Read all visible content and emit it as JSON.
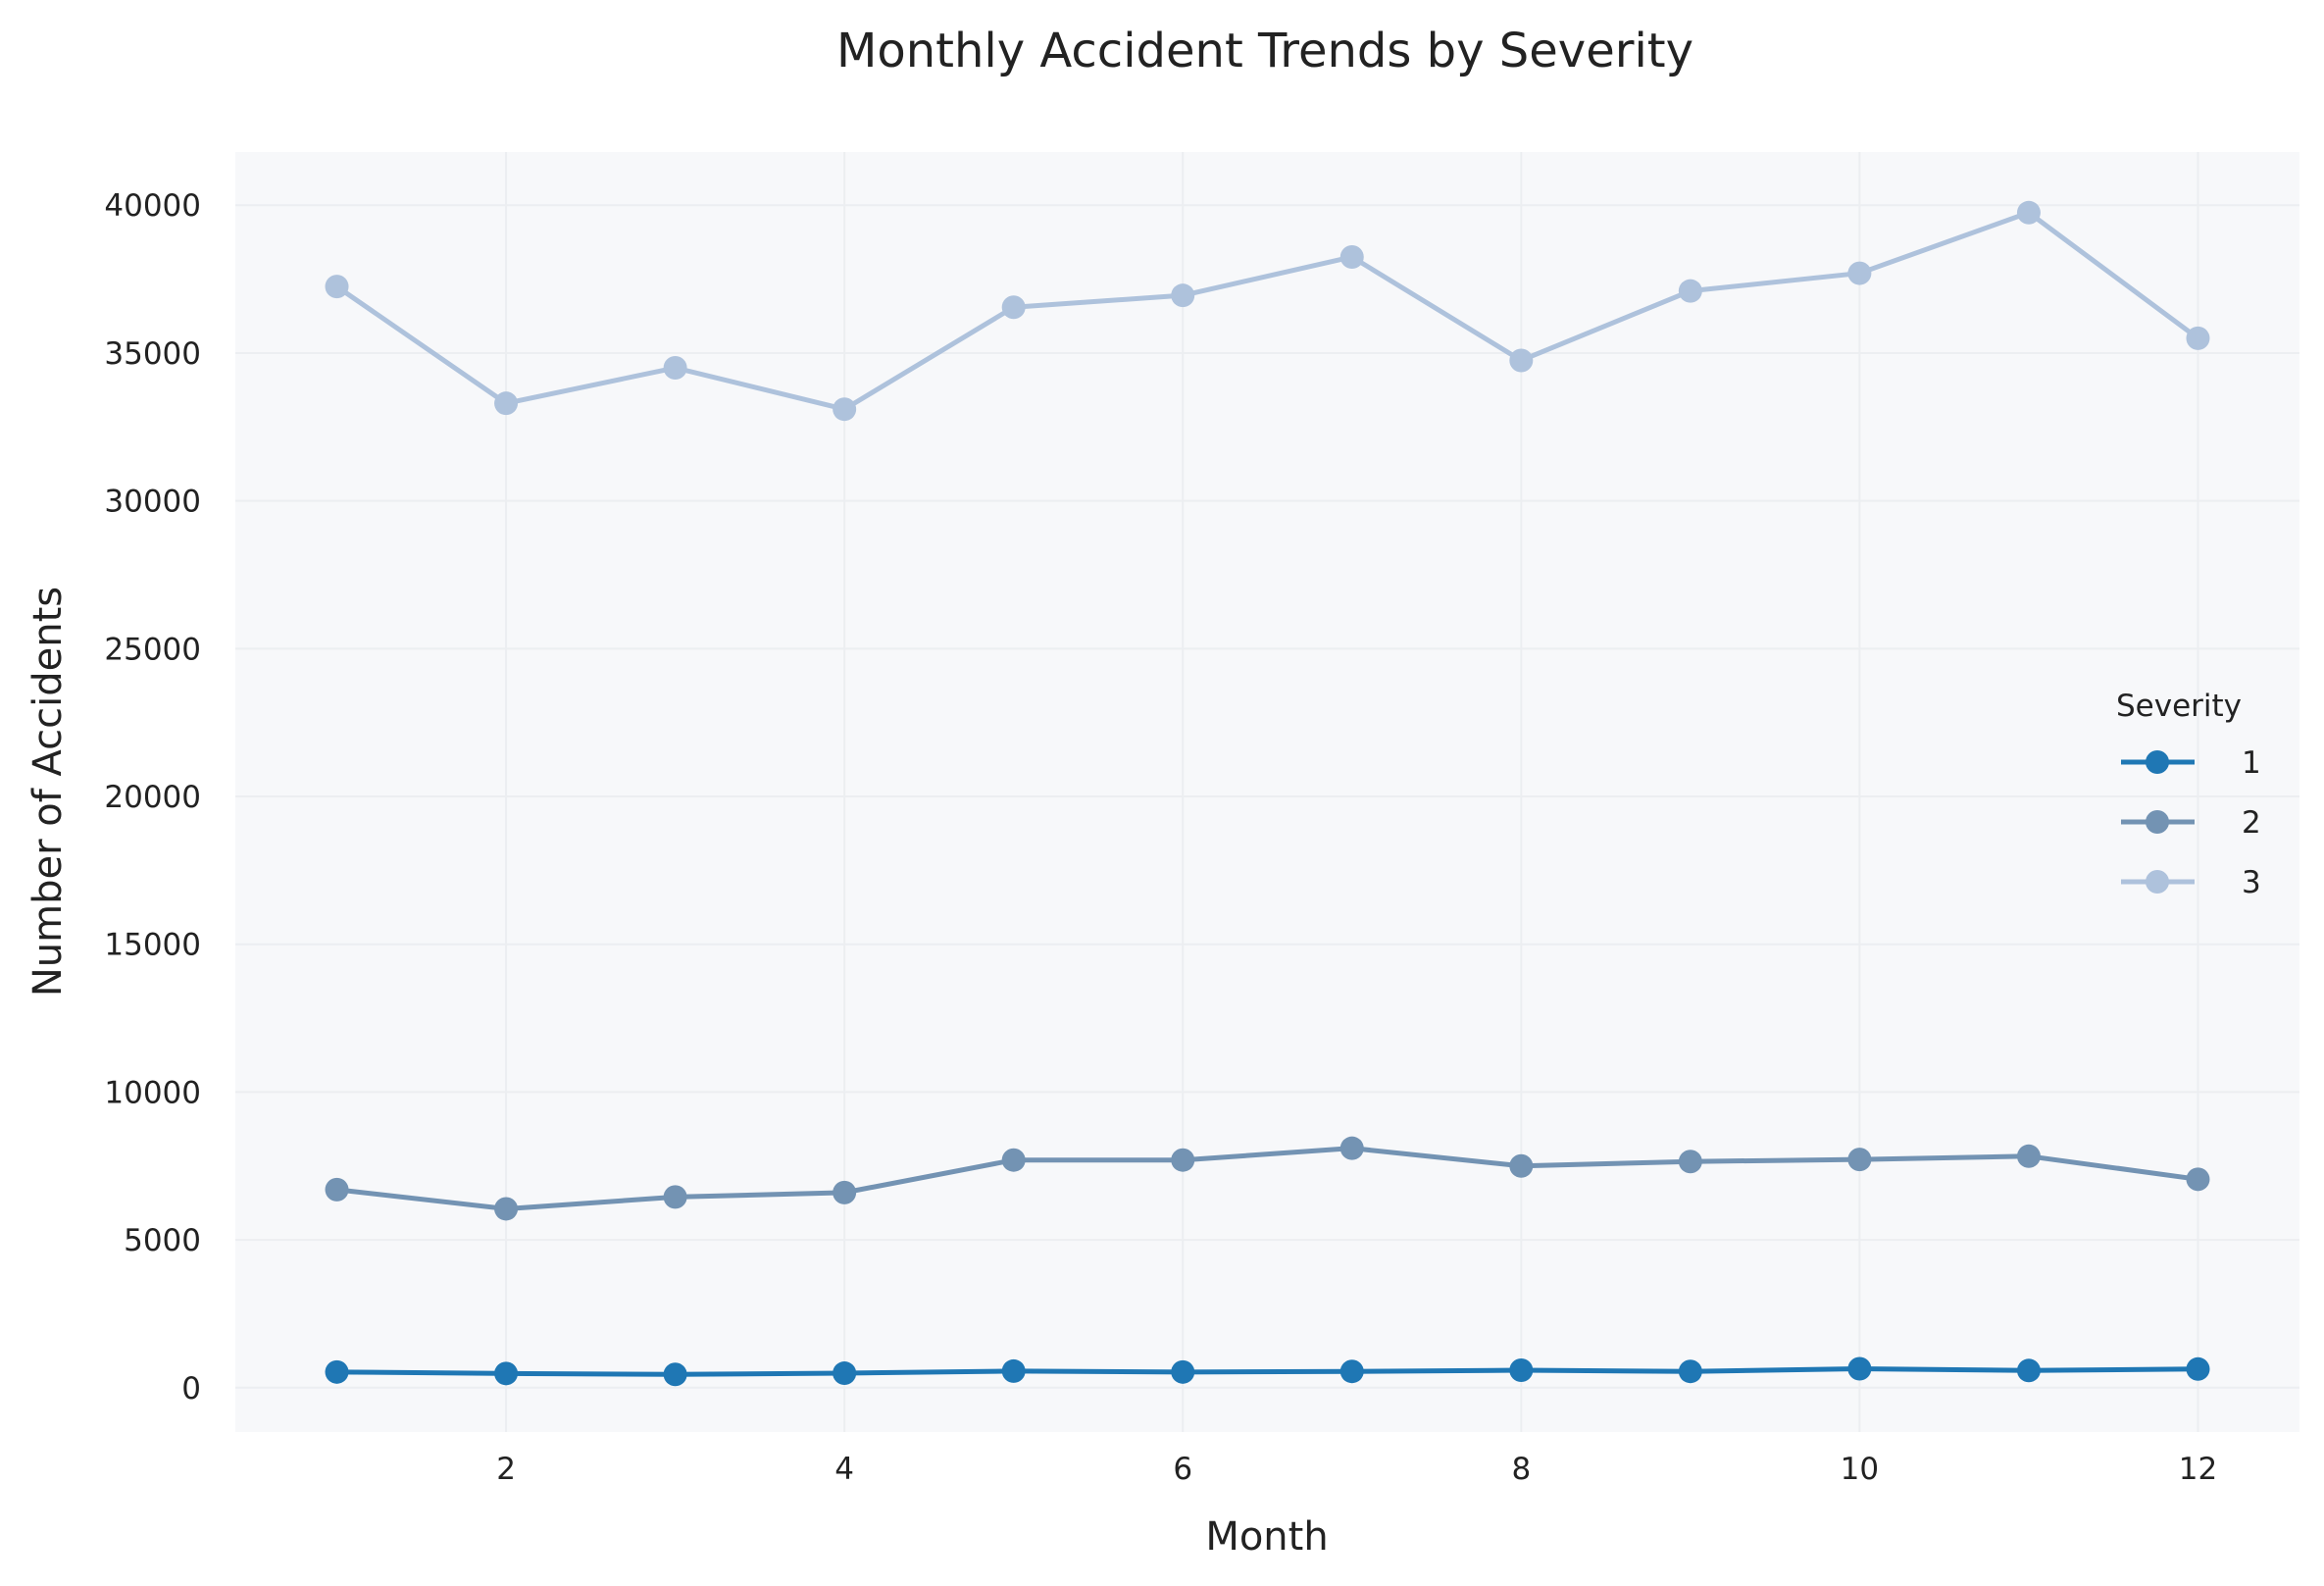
{
  "chart_data": {
    "type": "line",
    "title": "Monthly Accident Trends by Severity",
    "xlabel": "Month",
    "ylabel": "Number of Accidents",
    "x": [
      1,
      2,
      3,
      4,
      5,
      6,
      7,
      8,
      9,
      10,
      11,
      12
    ],
    "xlim": [
      0.4,
      12.6
    ],
    "ylim": [
      -1500,
      41800
    ],
    "x_ticks": [
      2,
      4,
      6,
      8,
      10,
      12
    ],
    "y_ticks": [
      0,
      5000,
      10000,
      15000,
      20000,
      25000,
      30000,
      35000,
      40000
    ],
    "grid": true,
    "legend": {
      "title": "Severity",
      "placement": "right"
    },
    "series": [
      {
        "name": "1",
        "color": "#1f77b4",
        "values": [
          530,
          480,
          450,
          490,
          560,
          530,
          550,
          590,
          550,
          640,
          580,
          630
        ]
      },
      {
        "name": "2",
        "color": "#7393b3",
        "values": [
          6700,
          6050,
          6450,
          6600,
          7700,
          7700,
          8100,
          7500,
          7650,
          7720,
          7830,
          7050
        ]
      },
      {
        "name": "3",
        "color": "#aec2dc",
        "values": [
          37250,
          33300,
          34500,
          33100,
          36550,
          36950,
          38250,
          34750,
          37100,
          37700,
          39750,
          35500
        ]
      }
    ]
  }
}
